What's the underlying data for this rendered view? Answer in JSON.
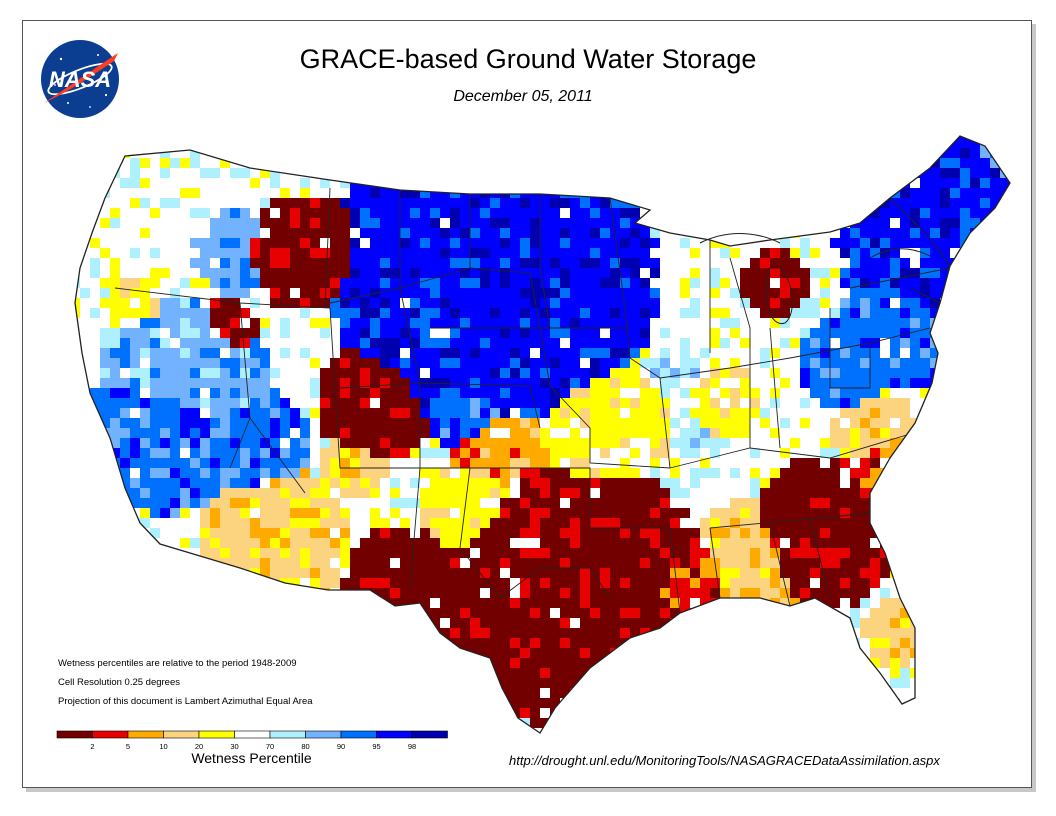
{
  "title": "GRACE-based Ground Water Storage",
  "date": "December 05, 2011",
  "logo_text": "NASA",
  "notes": [
    "Wetness percentiles are relative to the period 1948-2009",
    "Cell Resolution 0.25 degrees",
    "Projection of this document is Lambert Azimuthal Equal Area"
  ],
  "legend": {
    "title": "Wetness Percentile",
    "classes": [
      {
        "color": "#730000",
        "label": "2"
      },
      {
        "color": "#e60000",
        "label": "5"
      },
      {
        "color": "#ffaa00",
        "label": "10"
      },
      {
        "color": "#fcd37f",
        "label": "20"
      },
      {
        "color": "#ffff00",
        "label": "30"
      },
      {
        "color": "#ffffff",
        "label": "70"
      },
      {
        "color": "#aff0ff",
        "label": "80"
      },
      {
        "color": "#73b2ff",
        "label": "90"
      },
      {
        "color": "#0070ff",
        "label": "95"
      },
      {
        "color": "#0000ff",
        "label": "98"
      },
      {
        "color": "#0000b0",
        "label": ""
      }
    ]
  },
  "url": "http://drought.unl.edu/MonitoringTools/NASAGRACEDataAssimilation.aspx"
}
